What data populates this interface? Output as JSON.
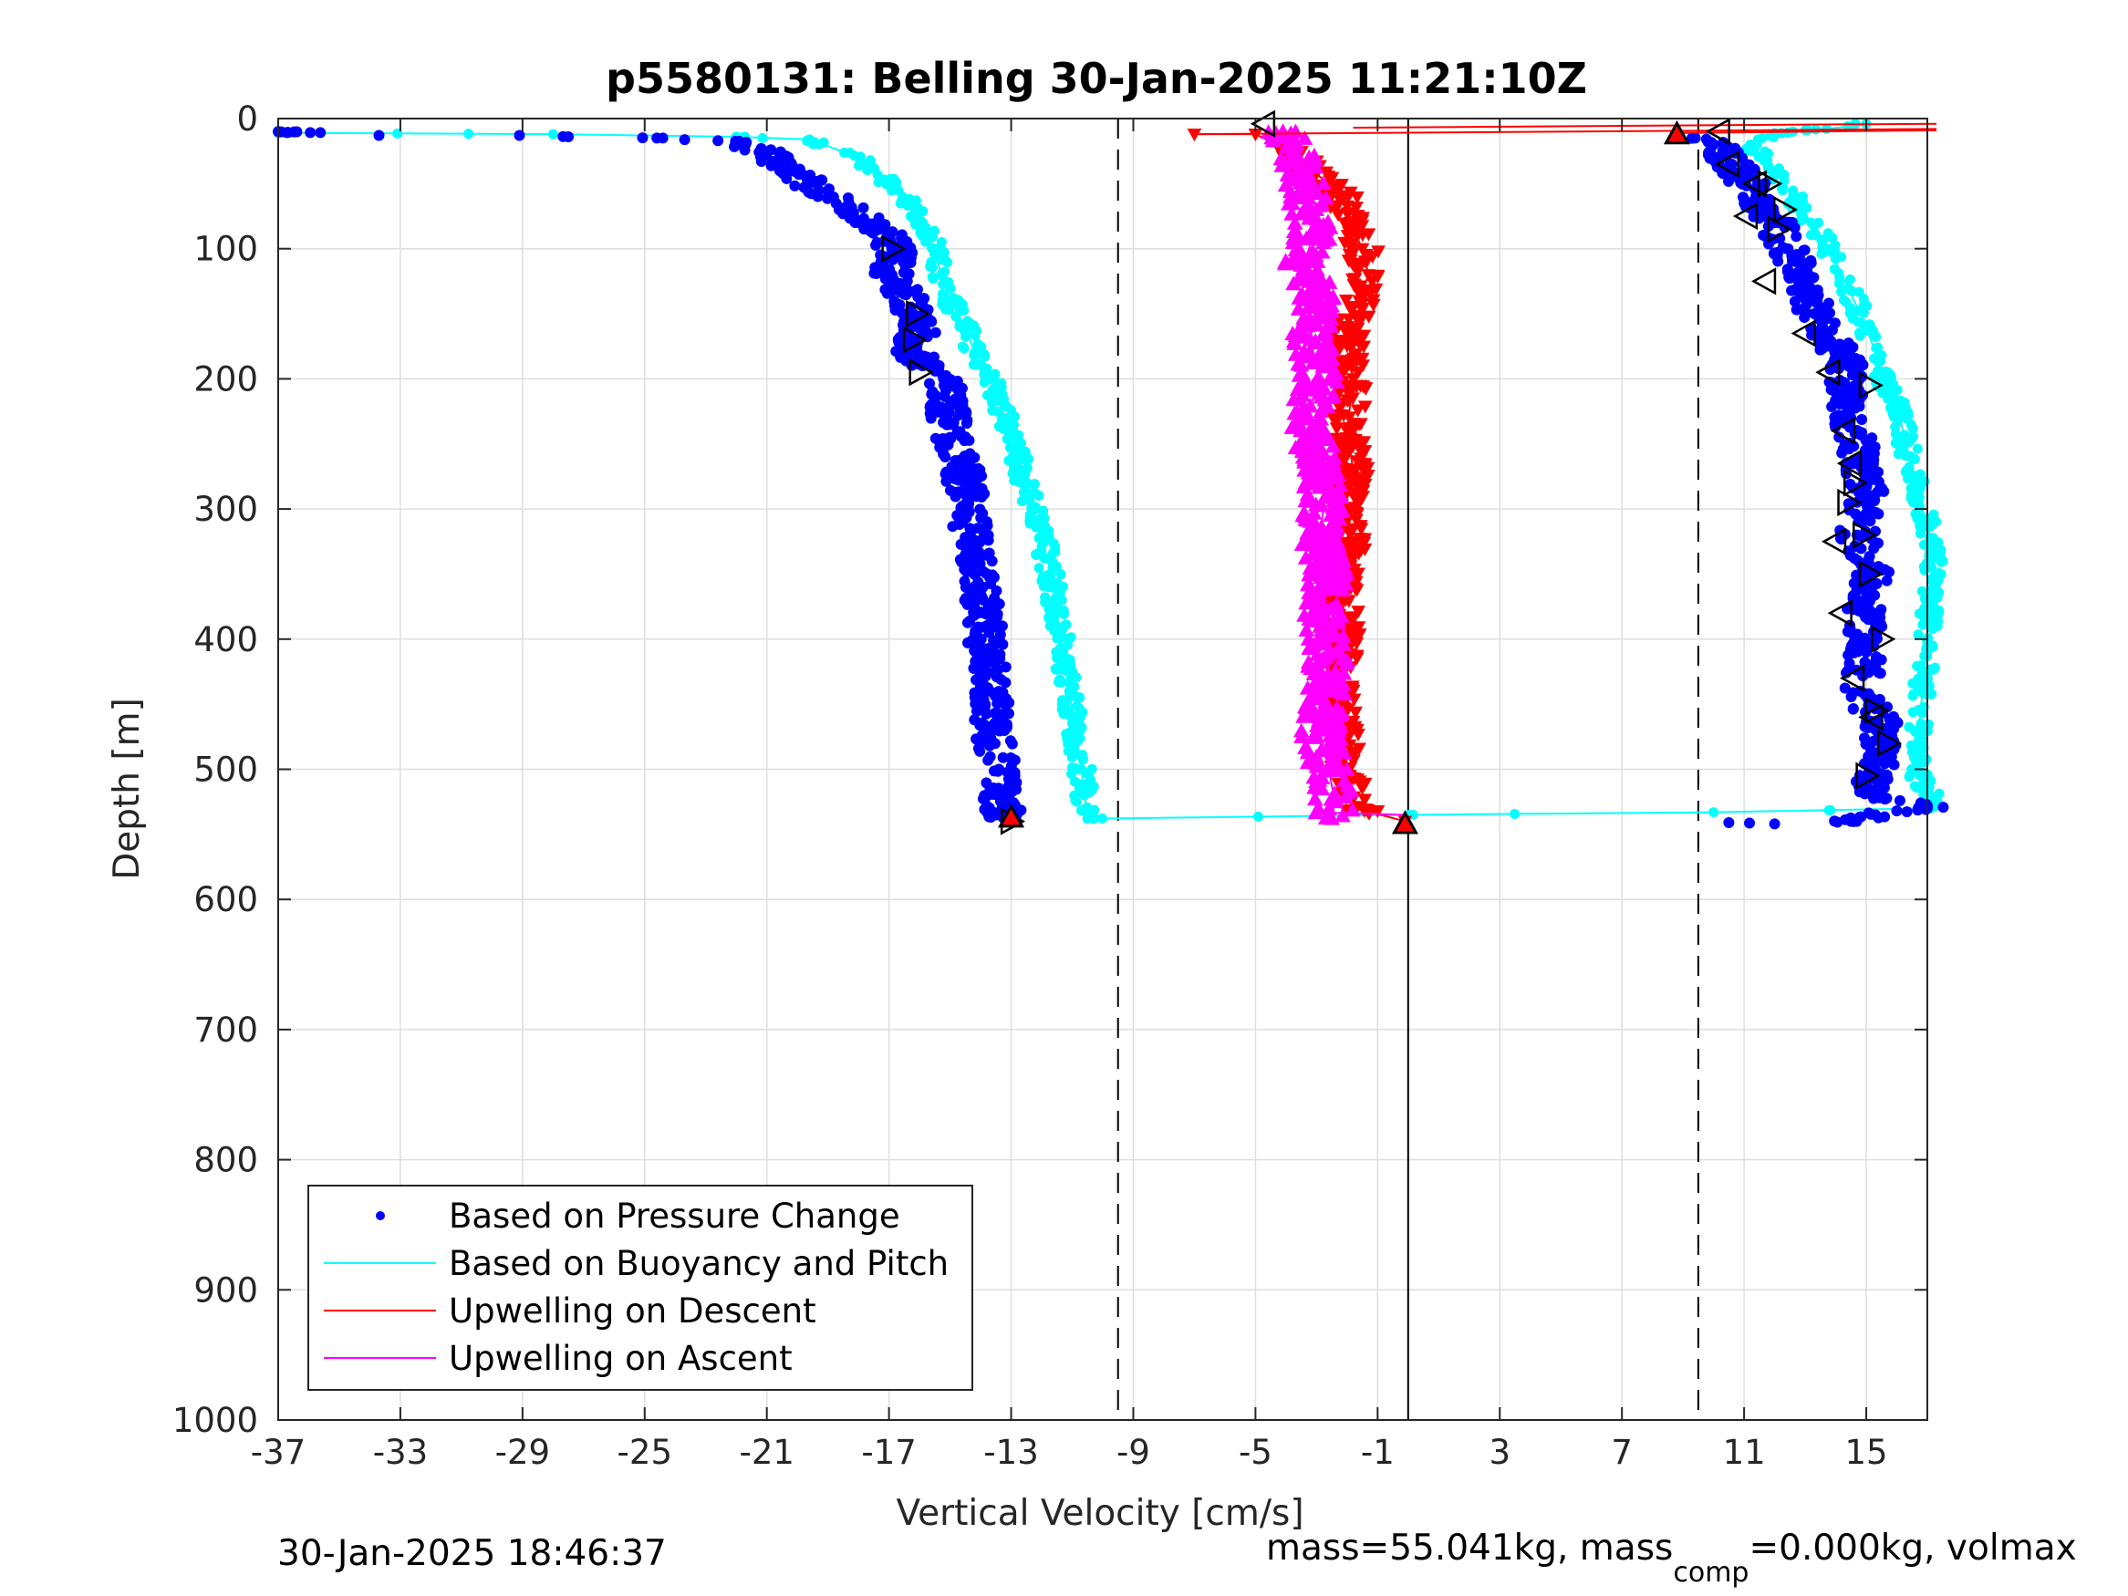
{
  "chart_data": {
    "type": "scatter",
    "title": "p5580131: Belling 30-Jan-2025 11:21:10Z",
    "xlabel": "Vertical Velocity [cm/s]",
    "ylabel": "Depth [m]",
    "xlim": [
      -37,
      17
    ],
    "ylim": [
      0,
      1000
    ],
    "y_reversed": true,
    "grid": true,
    "xticks": [
      "-37",
      "-33",
      "-29",
      "-25",
      "-21",
      "-17",
      "-13",
      "-9",
      "-5",
      "-1",
      "3",
      "7",
      "11",
      "15"
    ],
    "xtick_values": [
      -37,
      -33,
      -29,
      -25,
      -21,
      -17,
      -13,
      -9,
      -5,
      -1,
      3,
      7,
      11,
      15
    ],
    "yticks": [
      "0",
      "100",
      "200",
      "300",
      "400",
      "500",
      "600",
      "700",
      "800",
      "900",
      "1000"
    ],
    "ytick_values": [
      0,
      100,
      200,
      300,
      400,
      500,
      600,
      700,
      800,
      900,
      1000
    ],
    "reference_lines": [
      {
        "x": -9.5,
        "style": "dashed"
      },
      {
        "x": 0,
        "style": "solid"
      },
      {
        "x": 9.5,
        "style": "dashed"
      }
    ],
    "legend": {
      "position": "bottom-left",
      "entries": [
        {
          "label": "Based on Pressure Change",
          "color": "#0000ff",
          "marker": "dot"
        },
        {
          "label": "Based on Buoyancy and Pitch",
          "color": "#00ffff",
          "marker": "line"
        },
        {
          "label": "Upwelling on Descent",
          "color": "#ff0000",
          "marker": "line"
        },
        {
          "label": "Upwelling on Ascent",
          "color": "#ff00ff",
          "marker": "line"
        }
      ]
    },
    "series": [
      {
        "name": "Based on Pressure Change",
        "segment": "descent",
        "color": "#0000ff",
        "x": [
          -37,
          -33.7,
          -29.1,
          -27.5,
          -24.6,
          -22.6,
          -21.7,
          -21.1,
          -20.2,
          -19.3,
          -18.3,
          -17.3,
          -16.8,
          -16.9,
          -16.5,
          -16.2,
          -15.9,
          -16.4,
          -15.9,
          -15.2,
          -15.0,
          -14.6,
          -14.4,
          -14.2,
          -13.9,
          -13.8,
          -13.7,
          -13.6,
          -13.4,
          -13.4,
          -13.3,
          -13.1
        ],
        "y": [
          10,
          13,
          13,
          14,
          15,
          17,
          20,
          25,
          40,
          55,
          70,
          85,
          100,
          120,
          135,
          150,
          160,
          175,
          190,
          205,
          235,
          270,
          300,
          340,
          380,
          410,
          440,
          470,
          500,
          520,
          530,
          538
        ]
      },
      {
        "name": "Based on Pressure Change",
        "segment": "ascent",
        "color": "#0000ff",
        "x": [
          10.5,
          12,
          14.5,
          15.3,
          16.0,
          17.0,
          17.0,
          15.2,
          15.3,
          15.6,
          14.8,
          15.0,
          14.9,
          15.2,
          14.7,
          15.0,
          14.8,
          14.5,
          14.3,
          14.4,
          13.8,
          13.3,
          13.0,
          12.4,
          12.0,
          11.4,
          11.0,
          10.6,
          10.3,
          10.0,
          9.4
        ],
        "y": [
          541,
          542,
          540,
          535,
          532,
          530,
          528,
          520,
          500,
          470,
          440,
          410,
          380,
          350,
          320,
          290,
          260,
          230,
          210,
          190,
          170,
          150,
          125,
          100,
          80,
          60,
          45,
          35,
          25,
          20,
          15
        ]
      },
      {
        "name": "Based on Buoyancy and Pitch",
        "segment": "descent",
        "color": "#00ffff",
        "x": [
          -37,
          -28,
          -22,
          -19.6,
          -18.0,
          -16.7,
          -15.9,
          -15.5,
          -15.3,
          -15.0,
          -14.5,
          -14.2,
          -13.7,
          -13.2,
          -12.8,
          -12.4,
          -12.0,
          -11.7,
          -11.5,
          -11.3,
          -11.1,
          -10.9,
          -10.7,
          -10.6,
          -10.5,
          -10.5
        ],
        "y": [
          11,
          12,
          14,
          16,
          30,
          55,
          80,
          100,
          120,
          140,
          160,
          180,
          200,
          230,
          260,
          290,
          320,
          350,
          380,
          410,
          440,
          470,
          500,
          520,
          535,
          538
        ]
      },
      {
        "name": "Based on Buoyancy and Pitch",
        "segment": "ascent",
        "color": "#00ffff",
        "x": [
          -10.5,
          0,
          10,
          17,
          17.1,
          16.6,
          17.0,
          17.2,
          16.6,
          16.1,
          15.6,
          15.0,
          14.4,
          13.8,
          13.2,
          12.6,
          12.0,
          11.6,
          11.2,
          11.6,
          12.6,
          13.7,
          14.4,
          15.0
        ],
        "y": [
          538,
          535,
          533,
          530,
          520,
          500,
          400,
          330,
          280,
          230,
          200,
          160,
          130,
          100,
          80,
          60,
          40,
          30,
          20,
          15,
          10,
          8,
          6,
          4
        ]
      },
      {
        "name": "Upwelling on Descent",
        "color": "#ff0000",
        "x": [
          -7.0,
          -5.0,
          -4.3,
          -3.1,
          -2.2,
          -1.9,
          -1.5,
          -1.3,
          -1.6,
          -2.0,
          -1.8,
          -2.0,
          -1.8,
          -2.1,
          -1.9,
          -2.2,
          -2.0,
          -2.3,
          -2.1,
          -2.0,
          -1.7,
          -0.1
        ],
        "y": [
          12,
          12,
          20,
          40,
          60,
          80,
          100,
          120,
          140,
          160,
          200,
          240,
          270,
          300,
          330,
          360,
          400,
          440,
          470,
          500,
          530,
          540
        ]
      },
      {
        "name": "Upwelling on Ascent",
        "color": "#ff00ff",
        "x": [
          -4.1,
          -3.6,
          -3.3,
          -3.1,
          -3.4,
          -3.0,
          -3.2,
          -2.9,
          -3.3,
          -3.0,
          -2.7,
          -2.9,
          -2.6,
          -2.8,
          -2.6,
          -2.7,
          -2.9,
          -2.6,
          -2.4,
          -2.5
        ],
        "y": [
          10,
          30,
          60,
          90,
          110,
          140,
          170,
          200,
          230,
          260,
          290,
          320,
          350,
          380,
          410,
          440,
          470,
          500,
          525,
          538
        ]
      }
    ],
    "markers": {
      "left_triangles": [
        {
          "x": -4.7,
          "y": 4
        },
        {
          "x": 10.2,
          "y": 10
        },
        {
          "x": 10.5,
          "y": 35
        },
        {
          "x": 11.4,
          "y": 50
        },
        {
          "x": 11.1,
          "y": 75
        },
        {
          "x": 11.7,
          "y": 125
        },
        {
          "x": 13.0,
          "y": 165
        },
        {
          "x": 13.8,
          "y": 195
        },
        {
          "x": 14.3,
          "y": 240
        },
        {
          "x": 14.5,
          "y": 265
        },
        {
          "x": 14.0,
          "y": 325
        },
        {
          "x": 14.2,
          "y": 380
        },
        {
          "x": 14.6,
          "y": 430
        },
        {
          "x": 15.2,
          "y": 460
        }
      ],
      "right_triangles": [
        {
          "x": -16.9,
          "y": 100
        },
        {
          "x": -16.1,
          "y": 150
        },
        {
          "x": -16.2,
          "y": 170
        },
        {
          "x": -16.0,
          "y": 195
        },
        {
          "x": -13.0,
          "y": 540
        },
        {
          "x": 11.8,
          "y": 50
        },
        {
          "x": 12.3,
          "y": 70
        },
        {
          "x": 12.1,
          "y": 85
        },
        {
          "x": 15.1,
          "y": 205
        },
        {
          "x": 14.6,
          "y": 280
        },
        {
          "x": 14.4,
          "y": 295
        },
        {
          "x": 14.9,
          "y": 320
        },
        {
          "x": 15.1,
          "y": 350
        },
        {
          "x": 15.5,
          "y": 400
        },
        {
          "x": 15.3,
          "y": 455
        },
        {
          "x": 15.7,
          "y": 480
        },
        {
          "x": 15.0,
          "y": 505
        }
      ],
      "up_triangles": [
        {
          "x": 8.8,
          "y": 12
        },
        {
          "x": -13.0,
          "y": 537
        },
        {
          "x": -0.1,
          "y": 542
        }
      ]
    }
  },
  "footer": {
    "left": "30-Jan-2025 18:46:37",
    "right_prefix": "mass=55.041kg, mass",
    "right_sub": "comp",
    "right_suffix": "=0.000kg, volmax"
  },
  "colors": {
    "pressure": "#0000ff",
    "buoyancy": "#00ffff",
    "descent": "#ff0000",
    "ascent": "#ff00ff",
    "axis": "#262626",
    "grid": "#dedede"
  }
}
